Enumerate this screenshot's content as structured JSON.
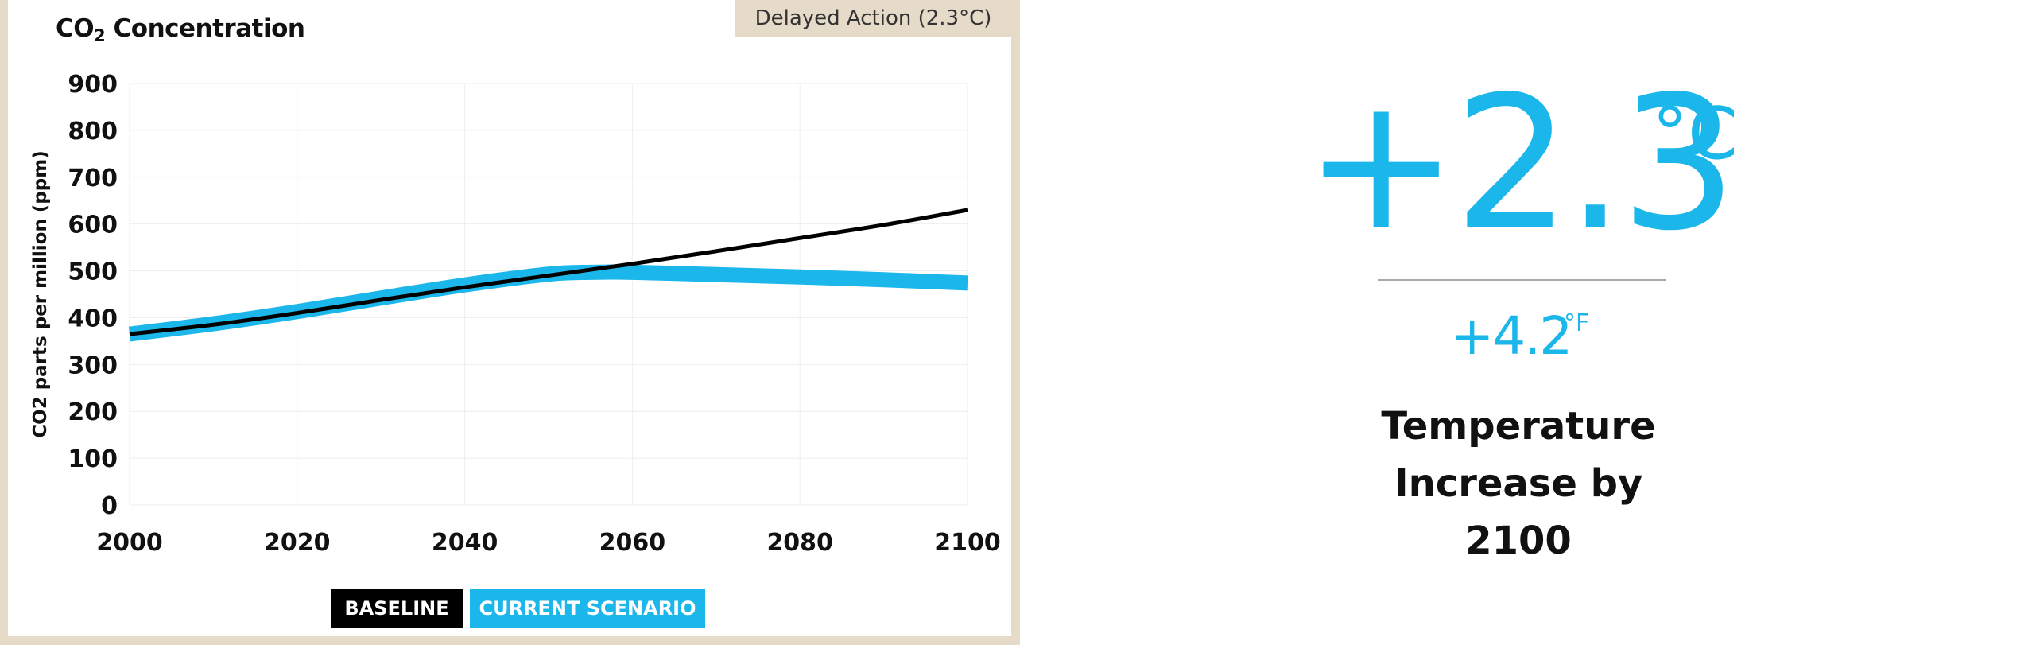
{
  "chart_title": {
    "main": "CO",
    "sub": "2",
    "rest": " Concentration"
  },
  "scenario_badge": "Delayed Action (2.3°C)",
  "legend": {
    "baseline": "BASELINE",
    "current": "CURRENT SCENARIO"
  },
  "colors": {
    "baseline": "#000000",
    "current": "#1cb7ea",
    "panel_border": "#e6dac8",
    "grid": "#eeeeee"
  },
  "chart_data": {
    "type": "line",
    "title": "CO2 Concentration",
    "xlabel": "",
    "ylabel": "CO2 parts per million (ppm)",
    "xlim": [
      2000,
      2100
    ],
    "ylim": [
      0,
      900
    ],
    "x_ticks": [
      2000,
      2020,
      2040,
      2060,
      2080,
      2100
    ],
    "y_ticks": [
      0,
      100,
      200,
      300,
      400,
      500,
      600,
      700,
      800,
      900
    ],
    "grid": true,
    "legend_position": "bottom-center",
    "series": [
      {
        "name": "BASELINE",
        "color": "#000000",
        "x": [
          2000,
          2010,
          2020,
          2030,
          2040,
          2050,
          2060,
          2070,
          2080,
          2090,
          2100
        ],
        "y": [
          365,
          385,
          410,
          438,
          465,
          490,
          515,
          542,
          570,
          598,
          630
        ]
      },
      {
        "name": "CURRENT SCENARIO",
        "color": "#1cb7ea",
        "x": [
          2000,
          2010,
          2020,
          2030,
          2040,
          2050,
          2055,
          2060,
          2070,
          2080,
          2090,
          2100
        ],
        "y": [
          365,
          387,
          413,
          442,
          470,
          493,
          497,
          497,
          492,
          487,
          481,
          474
        ]
      }
    ]
  },
  "temperature": {
    "celsius_value": "+2.3",
    "celsius_unit": "°C",
    "fahrenheit_value": "+4.2",
    "fahrenheit_unit": "°F",
    "caption_lines": [
      "Temperature",
      "Increase by",
      "2100"
    ]
  }
}
